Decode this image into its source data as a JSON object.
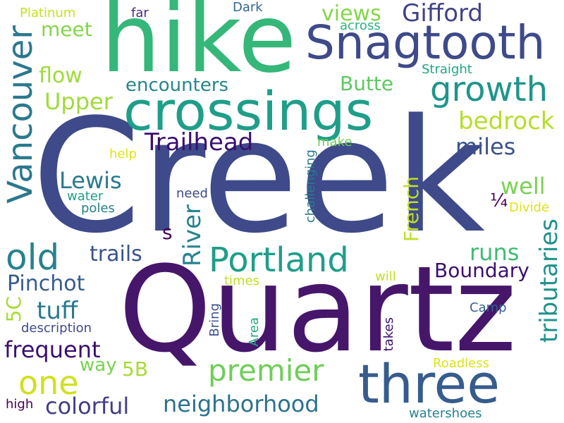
{
  "words": [
    {
      "text": "Creek",
      "color": "#3e4a89"
    },
    {
      "text": "Quartz",
      "color": "#46166b"
    },
    {
      "text": "hike",
      "color": "#35b779"
    },
    {
      "text": "crossings",
      "color": "#1f9e89"
    },
    {
      "text": "Snagtooth",
      "color": "#3e4a89"
    },
    {
      "text": "three",
      "color": "#365c8d"
    },
    {
      "text": "Portland",
      "color": "#1f9e89"
    },
    {
      "text": "growth",
      "color": "#1f958b"
    },
    {
      "text": "Vancouver",
      "color": "#2a788e"
    },
    {
      "text": "premier",
      "color": "#6ece58"
    },
    {
      "text": "one",
      "color": "#d0e11c"
    },
    {
      "text": "old",
      "color": "#26828e"
    },
    {
      "text": "Gifford",
      "color": "#404387"
    },
    {
      "text": "Trailhead",
      "color": "#3b0f70"
    },
    {
      "text": "neighborhood",
      "color": "#2c728e"
    },
    {
      "text": "colorful",
      "color": "#433e85"
    },
    {
      "text": "frequent",
      "color": "#3b0f70"
    },
    {
      "text": "Boundary",
      "color": "#3b0f70"
    },
    {
      "text": "tributaries",
      "color": "#21918c"
    },
    {
      "text": "encounters",
      "color": "#25858e"
    },
    {
      "text": "bedrock",
      "color": "#b5de2b"
    },
    {
      "text": "Pinchot",
      "color": "#365c8d"
    },
    {
      "text": "River",
      "color": "#26828e"
    },
    {
      "text": "Lewis",
      "color": "#2a788e"
    },
    {
      "text": "views",
      "color": "#86d549"
    },
    {
      "text": "meet",
      "color": "#84d44b"
    },
    {
      "text": "flow",
      "color": "#9fda3a"
    },
    {
      "text": "Upper",
      "color": "#a0da39"
    },
    {
      "text": "Butte",
      "color": "#5ec962"
    },
    {
      "text": "miles",
      "color": "#3a538b"
    },
    {
      "text": "well",
      "color": "#7ad151"
    },
    {
      "text": "runs",
      "color": "#3fbc73"
    },
    {
      "text": "tuff",
      "color": "#2a788e"
    },
    {
      "text": "trails",
      "color": "#3a538b"
    },
    {
      "text": "French",
      "color": "#bddf26"
    },
    {
      "text": "way",
      "color": "#7ad151"
    },
    {
      "text": "5B",
      "color": "#a8db34"
    },
    {
      "text": "5C",
      "color": "#a8db34"
    },
    {
      "text": "s",
      "color": "#440154"
    },
    {
      "text": "¼",
      "color": "#440154"
    },
    {
      "text": "Platinum",
      "color": "#c8e020"
    },
    {
      "text": "far",
      "color": "#472d7b"
    },
    {
      "text": "Dark",
      "color": "#31688e"
    },
    {
      "text": "across",
      "color": "#2db27d"
    },
    {
      "text": "Straight",
      "color": "#21a685"
    },
    {
      "text": "make",
      "color": "#6ece58"
    },
    {
      "text": "help",
      "color": "#dde318"
    },
    {
      "text": "challenging",
      "color": "#2a788e"
    },
    {
      "text": "water",
      "color": "#1f9e89"
    },
    {
      "text": "poles",
      "color": "#277f8e"
    },
    {
      "text": "need",
      "color": "#3e4a89"
    },
    {
      "text": "Divide",
      "color": "#dde318"
    },
    {
      "text": "times",
      "color": "#c2df23"
    },
    {
      "text": "will",
      "color": "#c2df23"
    },
    {
      "text": "Camp",
      "color": "#355f8d"
    },
    {
      "text": "description",
      "color": "#3e4a89"
    },
    {
      "text": "Bring",
      "color": "#3b528b"
    },
    {
      "text": "Area",
      "color": "#22a785"
    },
    {
      "text": "takes",
      "color": "#3b0f70"
    },
    {
      "text": "Roadless",
      "color": "#dde318"
    },
    {
      "text": "high",
      "color": "#440154"
    },
    {
      "text": "watershoes",
      "color": "#26828e"
    }
  ]
}
